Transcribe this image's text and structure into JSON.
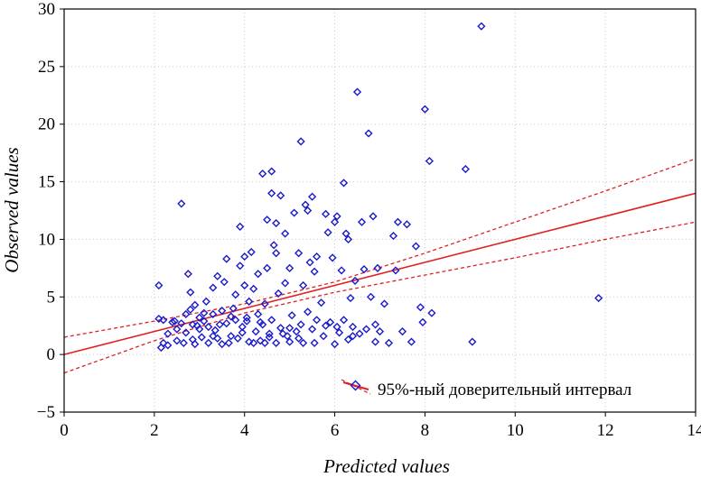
{
  "chart_data": {
    "type": "scatter",
    "title": "",
    "xlabel": "Predicted values",
    "ylabel": "Observed values",
    "xlim": [
      0,
      14
    ],
    "ylim": [
      -5,
      30
    ],
    "xticks": [
      "0",
      "2",
      "4",
      "6",
      "8",
      "10",
      "12",
      "14"
    ],
    "yticks": [
      "−5",
      "0",
      "5",
      "10",
      "15",
      "20",
      "25",
      "30"
    ],
    "grid": true,
    "legend": {
      "position": "bottom-right",
      "label": "95%-ный доверительный интервал"
    },
    "colors": {
      "points": "#1a1acc",
      "fit": "#e02020",
      "confidence": "#e02020"
    },
    "fit_line": {
      "slope": 1.0,
      "intercept": 0.0
    },
    "confidence_band": {
      "x": [
        0,
        2,
        4,
        6,
        8,
        10,
        12,
        14
      ],
      "upper": [
        1.5,
        2.9,
        4.4,
        6.3,
        8.8,
        11.5,
        14.2,
        17.0
      ],
      "lower": [
        -1.6,
        1.2,
        3.6,
        5.4,
        6.9,
        8.4,
        10.0,
        11.5
      ]
    },
    "points": [
      [
        2.1,
        6.0
      ],
      [
        2.1,
        3.1
      ],
      [
        2.2,
        3.0
      ],
      [
        2.2,
        1.0
      ],
      [
        2.3,
        0.8
      ],
      [
        2.15,
        0.6
      ],
      [
        2.4,
        2.8
      ],
      [
        2.5,
        1.2
      ],
      [
        2.6,
        13.1
      ],
      [
        2.6,
        2.7
      ],
      [
        2.7,
        3.5
      ],
      [
        2.7,
        1.9
      ],
      [
        2.75,
        7.0
      ],
      [
        2.8,
        5.4
      ],
      [
        2.8,
        3.9
      ],
      [
        2.85,
        1.3
      ],
      [
        2.9,
        4.3
      ],
      [
        2.9,
        0.9
      ],
      [
        3.0,
        3.2
      ],
      [
        3.0,
        2.2
      ],
      [
        3.05,
        1.5
      ],
      [
        3.1,
        2.9
      ],
      [
        3.15,
        4.6
      ],
      [
        3.2,
        1.0
      ],
      [
        3.3,
        5.8
      ],
      [
        3.3,
        3.5
      ],
      [
        3.35,
        2.1
      ],
      [
        3.4,
        1.4
      ],
      [
        3.4,
        6.8
      ],
      [
        3.5,
        0.9
      ],
      [
        3.5,
        3.8
      ],
      [
        3.55,
        6.3
      ],
      [
        3.6,
        2.7
      ],
      [
        3.6,
        8.3
      ],
      [
        3.7,
        1.6
      ],
      [
        3.75,
        4.0
      ],
      [
        3.8,
        3.0
      ],
      [
        3.8,
        5.2
      ],
      [
        3.9,
        7.7
      ],
      [
        3.9,
        11.1
      ],
      [
        3.95,
        2.4
      ],
      [
        4.0,
        6.0
      ],
      [
        4.0,
        8.5
      ],
      [
        4.05,
        3.2
      ],
      [
        4.1,
        1.1
      ],
      [
        4.1,
        4.6
      ],
      [
        4.15,
        8.9
      ],
      [
        4.2,
        5.7
      ],
      [
        4.25,
        2.0
      ],
      [
        4.3,
        3.5
      ],
      [
        4.3,
        7.0
      ],
      [
        4.35,
        1.2
      ],
      [
        4.4,
        15.7
      ],
      [
        4.4,
        2.6
      ],
      [
        4.45,
        4.4
      ],
      [
        4.5,
        11.7
      ],
      [
        4.5,
        7.5
      ],
      [
        4.55,
        1.5
      ],
      [
        4.6,
        14.0
      ],
      [
        4.6,
        15.9
      ],
      [
        4.6,
        3.0
      ],
      [
        4.65,
        9.5
      ],
      [
        4.7,
        11.4
      ],
      [
        4.7,
        8.8
      ],
      [
        4.75,
        5.3
      ],
      [
        4.8,
        2.3
      ],
      [
        4.8,
        13.8
      ],
      [
        4.85,
        1.8
      ],
      [
        4.9,
        6.2
      ],
      [
        4.9,
        10.5
      ],
      [
        5.0,
        7.5
      ],
      [
        5.0,
        1.1
      ],
      [
        5.05,
        3.4
      ],
      [
        5.1,
        12.3
      ],
      [
        5.15,
        2.0
      ],
      [
        5.2,
        8.8
      ],
      [
        5.25,
        18.5
      ],
      [
        5.3,
        6.0
      ],
      [
        5.3,
        1.0
      ],
      [
        5.35,
        13.0
      ],
      [
        5.4,
        3.7
      ],
      [
        5.4,
        12.5
      ],
      [
        5.45,
        8.0
      ],
      [
        5.5,
        13.7
      ],
      [
        5.5,
        2.2
      ],
      [
        5.55,
        7.2
      ],
      [
        5.6,
        8.5
      ],
      [
        5.7,
        4.5
      ],
      [
        5.75,
        1.6
      ],
      [
        5.8,
        12.2
      ],
      [
        5.85,
        10.6
      ],
      [
        5.9,
        2.8
      ],
      [
        5.95,
        8.4
      ],
      [
        6.0,
        11.5
      ],
      [
        6.0,
        0.9
      ],
      [
        6.05,
        12.0
      ],
      [
        6.1,
        1.9
      ],
      [
        6.15,
        7.3
      ],
      [
        6.2,
        14.9
      ],
      [
        6.2,
        3.0
      ],
      [
        6.25,
        10.5
      ],
      [
        6.3,
        10.0
      ],
      [
        6.3,
        1.3
      ],
      [
        6.35,
        4.9
      ],
      [
        6.4,
        2.4
      ],
      [
        6.45,
        6.4
      ],
      [
        6.5,
        22.8
      ],
      [
        6.55,
        1.8
      ],
      [
        6.6,
        11.5
      ],
      [
        6.65,
        7.4
      ],
      [
        6.7,
        2.2
      ],
      [
        6.75,
        19.2
      ],
      [
        6.8,
        5.0
      ],
      [
        6.85,
        12.0
      ],
      [
        6.9,
        1.1
      ],
      [
        6.95,
        7.5
      ],
      [
        7.0,
        2.0
      ],
      [
        7.1,
        4.4
      ],
      [
        7.2,
        1.0
      ],
      [
        7.3,
        10.3
      ],
      [
        7.35,
        7.3
      ],
      [
        7.4,
        11.5
      ],
      [
        7.5,
        2.0
      ],
      [
        7.6,
        11.3
      ],
      [
        7.7,
        1.1
      ],
      [
        7.8,
        9.4
      ],
      [
        7.9,
        4.1
      ],
      [
        7.95,
        2.8
      ],
      [
        8.0,
        21.3
      ],
      [
        8.1,
        16.8
      ],
      [
        8.15,
        3.6
      ],
      [
        8.9,
        16.1
      ],
      [
        9.05,
        1.1
      ],
      [
        9.25,
        28.5
      ],
      [
        11.85,
        4.9
      ],
      [
        2.3,
        1.8
      ],
      [
        2.5,
        2.2
      ],
      [
        2.65,
        1.0
      ],
      [
        2.95,
        2.5
      ],
      [
        3.2,
        2.4
      ],
      [
        3.45,
        2.6
      ],
      [
        3.65,
        1.0
      ],
      [
        3.85,
        1.4
      ],
      [
        4.2,
        1.0
      ],
      [
        4.45,
        1.0
      ],
      [
        4.7,
        1.0
      ],
      [
        4.95,
        1.6
      ],
      [
        5.2,
        1.4
      ],
      [
        5.55,
        1.0
      ],
      [
        5.8,
        2.5
      ],
      [
        6.05,
        2.4
      ],
      [
        6.4,
        1.6
      ],
      [
        6.9,
        2.6
      ],
      [
        3.1,
        3.6
      ],
      [
        3.7,
        3.3
      ],
      [
        4.05,
        2.9
      ],
      [
        4.35,
        2.8
      ],
      [
        5.0,
        2.3
      ],
      [
        5.6,
        3.0
      ],
      [
        2.85,
        2.6
      ],
      [
        3.3,
        1.6
      ],
      [
        4.55,
        1.8
      ],
      [
        5.25,
        2.6
      ],
      [
        2.45,
        2.9
      ],
      [
        3.95,
        1.9
      ]
    ]
  }
}
